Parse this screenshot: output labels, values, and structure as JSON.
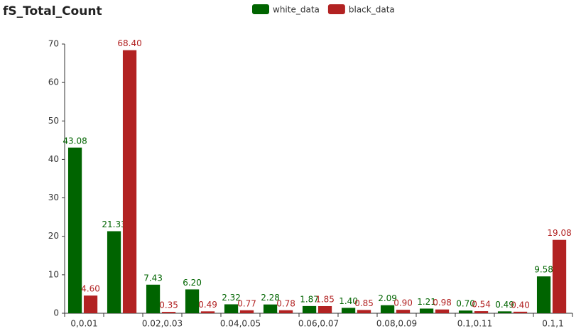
{
  "chart_data": {
    "type": "bar",
    "title": "fS_Total_Count",
    "categories": [
      "0,0.01",
      null,
      "0.02,0.03",
      null,
      "0.04,0.05",
      null,
      "0.06,0.07",
      null,
      "0.08,0.09",
      null,
      "0.1,0.11",
      null,
      "0.1,1"
    ],
    "series": [
      {
        "name": "white_data",
        "color": "#006400",
        "values": [
          43.08,
          21.33,
          7.43,
          6.2,
          2.32,
          2.28,
          1.87,
          1.4,
          2.09,
          1.21,
          0.7,
          0.49,
          9.58
        ],
        "value_labels": [
          "43.08",
          "21.33",
          "7.43",
          "6.20",
          "2.32",
          "2.28",
          "1.87",
          "1.40",
          "2.09",
          "1.21",
          "0.70",
          "0.49",
          "9.58"
        ]
      },
      {
        "name": "black_data",
        "color": "#b22222",
        "values": [
          4.6,
          68.4,
          0.35,
          0.49,
          0.77,
          0.78,
          1.85,
          0.85,
          0.9,
          0.98,
          0.54,
          0.4,
          19.08
        ],
        "value_labels": [
          "4.60",
          "68.40",
          "0.35",
          "0.49",
          "0.77",
          "0.78",
          "1.85",
          "0.85",
          "0.90",
          "0.98",
          "0.54",
          "0.40",
          "19.08"
        ]
      }
    ],
    "ylim": [
      0,
      70
    ],
    "yticks": [
      0,
      10,
      20,
      30,
      40,
      50,
      60,
      70
    ],
    "grid": false,
    "legend": "top"
  }
}
